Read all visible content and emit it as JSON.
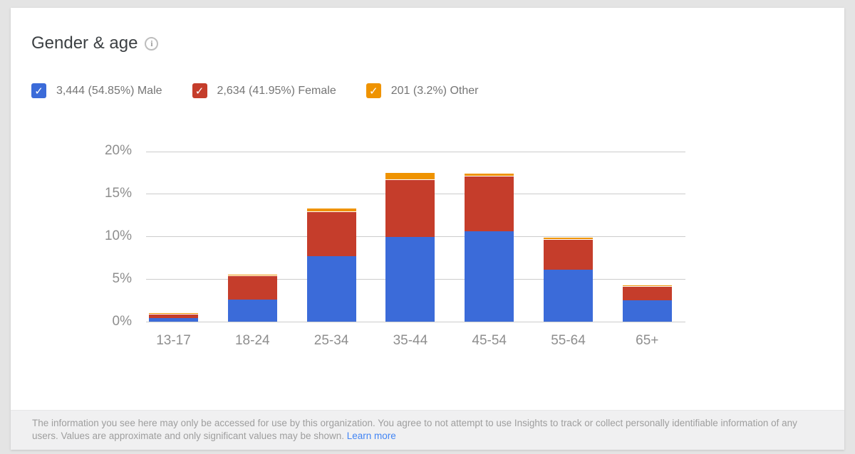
{
  "colors": {
    "page_bg": "#e4e4e4",
    "card_bg": "#ffffff",
    "footer_bg": "#f0f0f1",
    "grid": "#cccccc",
    "axis_text": "#8e8e8e",
    "title_text": "#3c4043",
    "legend_text": "#757575",
    "footer_text": "#9e9e9e",
    "link": "#4285f4",
    "male": "#3b6bd9",
    "female": "#c53d2b",
    "other": "#ef9300"
  },
  "header": {
    "title": "Gender & age",
    "info_icon_glyph": "i"
  },
  "legend": [
    {
      "name": "Male",
      "label": "3,444 (54.85%) Male",
      "color": "#3b6bd9",
      "checked": true
    },
    {
      "name": "Female",
      "label": "2,634 (41.95%) Female",
      "color": "#c53d2b",
      "checked": true
    },
    {
      "name": "Other",
      "label": "201 (3.2%) Other",
      "color": "#ef9300",
      "checked": true
    }
  ],
  "chart_data": {
    "type": "bar",
    "stacked": true,
    "title": "Gender & age",
    "categories": [
      "13-17",
      "18-24",
      "25-34",
      "35-44",
      "45-54",
      "55-64",
      "65+"
    ],
    "series": [
      {
        "name": "Male",
        "color": "#3b6bd9",
        "values": [
          0.45,
          2.6,
          7.7,
          9.9,
          10.6,
          6.1,
          2.5
        ]
      },
      {
        "name": "Female",
        "color": "#c53d2b",
        "values": [
          0.5,
          2.8,
          5.2,
          6.8,
          6.5,
          3.6,
          1.7
        ]
      },
      {
        "name": "Other",
        "color": "#ef9300",
        "values": [
          0.1,
          0.2,
          0.4,
          0.8,
          0.3,
          0.2,
          0.1
        ]
      }
    ],
    "totals_approx": [
      1.05,
      5.6,
      13.3,
      17.5,
      17.4,
      9.9,
      4.3
    ],
    "xlabel": "",
    "ylabel": "",
    "ylim": [
      0,
      20
    ],
    "yticks": [
      {
        "value": 0,
        "label": "0%"
      },
      {
        "value": 5,
        "label": "5%"
      },
      {
        "value": 10,
        "label": "10%"
      },
      {
        "value": 15,
        "label": "15%"
      },
      {
        "value": 20,
        "label": "20%"
      }
    ],
    "grid": true,
    "legend_position": "top"
  },
  "footer": {
    "text": "The information you see here may only be accessed for use by this organization. You agree to not attempt to use Insights to track or collect personally identifiable information of any users. Values are approximate and only significant values may be shown. ",
    "link_label": "Learn more"
  }
}
